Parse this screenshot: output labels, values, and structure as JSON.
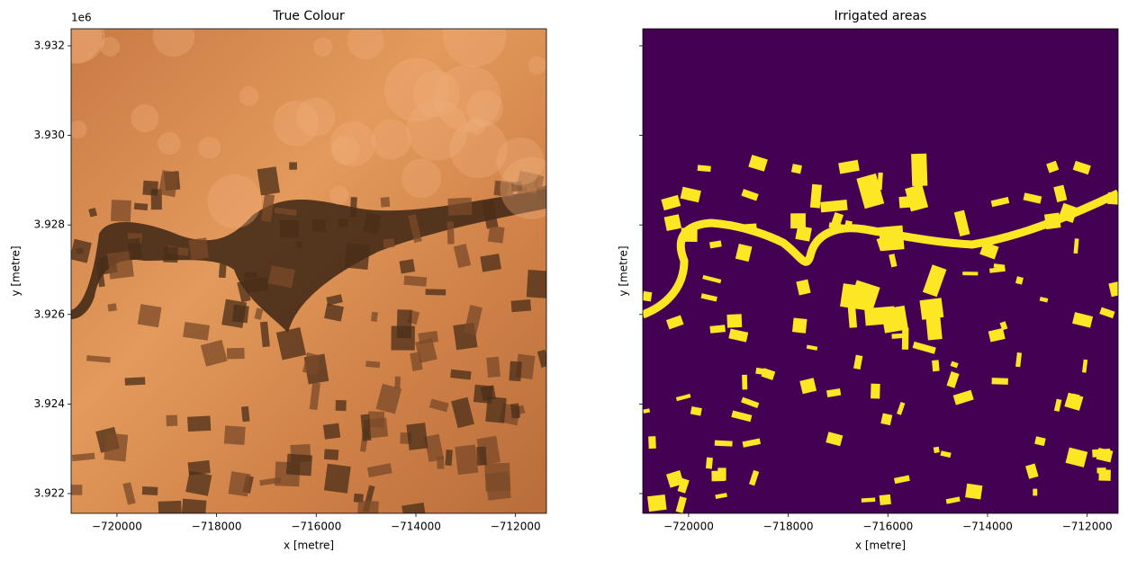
{
  "chart_data": [
    {
      "type": "image",
      "title": "True Colour",
      "xlabel": "x [metre]",
      "ylabel": "y [metre]",
      "offset_label": "1e6",
      "xlim": [
        -720920,
        -711380
      ],
      "ylim": [
        3921558,
        3932381
      ],
      "xticks": [
        {
          "value": -720000,
          "label": "−720000"
        },
        {
          "value": -718000,
          "label": "−718000"
        },
        {
          "value": -716000,
          "label": "−716000"
        },
        {
          "value": -714000,
          "label": "−714000"
        },
        {
          "value": -712000,
          "label": "−712000"
        }
      ],
      "yticks": [
        {
          "value": 3922000,
          "label": "3.922"
        },
        {
          "value": 3924000,
          "label": "3.924"
        },
        {
          "value": 3926000,
          "label": "3.926"
        },
        {
          "value": 3928000,
          "label": "3.928"
        },
        {
          "value": 3930000,
          "label": "3.930"
        },
        {
          "value": 3932000,
          "label": "3.932"
        }
      ],
      "show_ytick_labels": true
    },
    {
      "type": "image",
      "title": "Irrigated areas",
      "xlabel": "x [metre]",
      "ylabel": "y [metre]",
      "xlim": [
        -720920,
        -711380
      ],
      "ylim": [
        3921558,
        3932381
      ],
      "xticks": [
        {
          "value": -720000,
          "label": "−720000"
        },
        {
          "value": -718000,
          "label": "−718000"
        },
        {
          "value": -716000,
          "label": "−716000"
        },
        {
          "value": -714000,
          "label": "−714000"
        },
        {
          "value": -712000,
          "label": "−712000"
        }
      ],
      "yticks": [
        3922000,
        3924000,
        3926000,
        3928000,
        3930000,
        3932000
      ],
      "show_ytick_labels": false
    }
  ]
}
